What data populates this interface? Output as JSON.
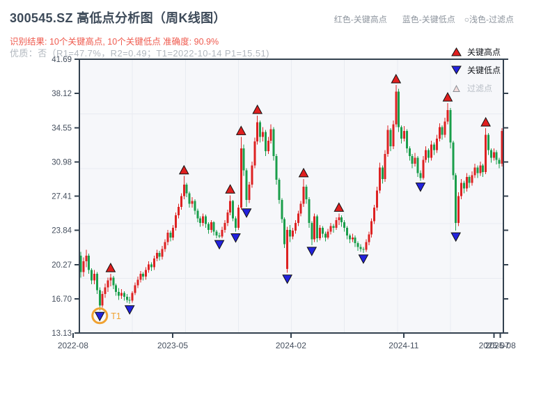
{
  "header": {
    "title": "300545.SZ 高低点分析图（周K线图）",
    "legend_inline": {
      "high": "红色-关键高点",
      "low": "蓝色-关键低点",
      "filtered": "○浅色-过滤点"
    },
    "result_line": "识别结果: 10个关键高点, 10个关键低点  准确度: 90.9%",
    "quality_line": "优质：否（R1=47.7%，R2=0.49；T1=2022-10-14 P1=15.51)"
  },
  "legend_box": {
    "items": [
      {
        "label": "关键高点",
        "marker": "triangle-up",
        "color": "#e01f1f"
      },
      {
        "label": "关键低点",
        "marker": "triangle-down",
        "color": "#2222dd"
      },
      {
        "label": "过滤点",
        "marker": "triangle-up-outline",
        "color": "#f2dbdb"
      }
    ]
  },
  "chart_data": {
    "type": "candlestick",
    "title": "300545.SZ 高低点分析图（周K线图）",
    "frequency": "weekly",
    "ylim": [
      13.13,
      41.69
    ],
    "y_ticks": [
      "41.69",
      "38.12",
      "34.55",
      "30.98",
      "27.41",
      "23.84",
      "20.27",
      "16.70",
      "13.13"
    ],
    "x_ticks": [
      {
        "label": "2022-08",
        "f": -0.015
      },
      {
        "label": "2023-05",
        "f": 0.22
      },
      {
        "label": "2024-02",
        "f": 0.499
      },
      {
        "label": "2024-11",
        "f": 0.765
      },
      {
        "label": "2025-07",
        "f": 0.978
      },
      {
        "label": "2025-08",
        "f": 0.993
      }
    ],
    "grid": {
      "on": true,
      "h_divisions": 5,
      "v_divisions": 8
    },
    "legend_position": "top-right-inside",
    "colors": {
      "up": "#dd2222",
      "down": "#1a9e4b",
      "key_high": "#e01f1f",
      "key_low": "#2222dd",
      "filtered": "#f2dbdb",
      "annotation": "#f0a232",
      "spine": "#33414f",
      "grid": "#e8ebf1",
      "plot_bg": "#f6f7fa",
      "tick_label": "#454f5e"
    },
    "candles_format": [
      "open",
      "high",
      "low",
      "close"
    ],
    "candles": [
      [
        21.2,
        21.6,
        18.9,
        19.5
      ],
      [
        19.5,
        21.0,
        19.0,
        20.6
      ],
      [
        20.6,
        21.8,
        20.0,
        21.2
      ],
      [
        21.2,
        21.4,
        19.3,
        19.7
      ],
      [
        19.7,
        19.9,
        18.2,
        18.6
      ],
      [
        18.6,
        19.7,
        18.2,
        19.3
      ],
      [
        19.3,
        19.5,
        17.2,
        17.6
      ],
      [
        17.6,
        17.9,
        15.51,
        16.0
      ],
      [
        16.0,
        17.5,
        15.8,
        17.2
      ],
      [
        17.2,
        18.3,
        16.8,
        17.9
      ],
      [
        17.9,
        18.9,
        17.4,
        18.6
      ],
      [
        18.6,
        19.3,
        18.0,
        18.9
      ],
      [
        18.9,
        19.1,
        17.7,
        18.1
      ],
      [
        18.1,
        18.3,
        17.0,
        17.4
      ],
      [
        17.4,
        17.8,
        16.6,
        17.0
      ],
      [
        17.0,
        17.7,
        16.7,
        17.3
      ],
      [
        17.3,
        17.5,
        16.5,
        16.9
      ],
      [
        16.9,
        17.2,
        16.3,
        16.6
      ],
      [
        16.6,
        16.9,
        16.2,
        16.5
      ],
      [
        16.5,
        17.5,
        16.3,
        17.3
      ],
      [
        17.3,
        18.4,
        17.1,
        18.1
      ],
      [
        18.1,
        19.0,
        17.8,
        18.7
      ],
      [
        18.7,
        19.6,
        18.4,
        19.3
      ],
      [
        19.3,
        19.5,
        18.6,
        19.0
      ],
      [
        19.0,
        20.0,
        18.7,
        19.7
      ],
      [
        19.7,
        20.6,
        19.4,
        20.3
      ],
      [
        20.3,
        20.5,
        19.6,
        20.0
      ],
      [
        20.0,
        21.2,
        19.7,
        20.9
      ],
      [
        20.9,
        21.8,
        20.6,
        21.5
      ],
      [
        21.5,
        21.7,
        20.7,
        21.1
      ],
      [
        21.1,
        22.2,
        20.8,
        21.9
      ],
      [
        21.9,
        22.9,
        21.6,
        22.6
      ],
      [
        22.6,
        23.9,
        22.3,
        23.6
      ],
      [
        23.6,
        23.8,
        22.7,
        23.1
      ],
      [
        23.1,
        24.4,
        22.8,
        24.1
      ],
      [
        24.1,
        25.7,
        23.8,
        25.4
      ],
      [
        25.4,
        26.6,
        25.1,
        26.3
      ],
      [
        26.3,
        27.7,
        26.0,
        27.4
      ],
      [
        27.4,
        29.5,
        27.1,
        28.6
      ],
      [
        28.6,
        28.8,
        27.3,
        27.7
      ],
      [
        27.7,
        27.9,
        26.2,
        26.6
      ],
      [
        26.6,
        27.3,
        26.2,
        26.9
      ],
      [
        26.9,
        27.1,
        25.5,
        25.9
      ],
      [
        25.9,
        26.1,
        24.7,
        25.1
      ],
      [
        25.1,
        25.3,
        24.2,
        24.6
      ],
      [
        24.6,
        25.6,
        24.3,
        25.3
      ],
      [
        25.3,
        25.5,
        24.1,
        24.5
      ],
      [
        24.5,
        24.7,
        23.5,
        23.9
      ],
      [
        23.9,
        24.9,
        23.6,
        24.7
      ],
      [
        24.7,
        24.8,
        23.3,
        23.7
      ],
      [
        23.7,
        23.9,
        23.0,
        23.3
      ],
      [
        23.3,
        23.6,
        23.0,
        23.2
      ],
      [
        23.2,
        24.2,
        23.0,
        23.9
      ],
      [
        23.9,
        24.9,
        23.6,
        24.6
      ],
      [
        24.6,
        26.0,
        24.3,
        25.7
      ],
      [
        25.7,
        27.5,
        25.4,
        26.9
      ],
      [
        26.9,
        27.0,
        24.8,
        25.1
      ],
      [
        25.1,
        25.3,
        23.7,
        24.1
      ],
      [
        24.1,
        26.5,
        23.9,
        26.2
      ],
      [
        26.2,
        33.6,
        26.0,
        32.4
      ],
      [
        32.4,
        32.8,
        29.5,
        30.1
      ],
      [
        30.1,
        30.3,
        26.3,
        27.0
      ],
      [
        27.0,
        28.9,
        26.7,
        28.6
      ],
      [
        28.6,
        31.0,
        28.3,
        30.6
      ],
      [
        30.6,
        33.5,
        30.3,
        33.1
      ],
      [
        33.1,
        35.8,
        32.8,
        35.1
      ],
      [
        35.1,
        35.3,
        33.0,
        33.6
      ],
      [
        33.6,
        34.6,
        33.1,
        34.1
      ],
      [
        34.1,
        34.3,
        31.6,
        32.1
      ],
      [
        32.1,
        33.6,
        31.8,
        33.2
      ],
      [
        33.2,
        34.9,
        32.9,
        34.4
      ],
      [
        34.4,
        34.6,
        31.1,
        31.6
      ],
      [
        31.6,
        31.8,
        28.6,
        29.1
      ],
      [
        29.1,
        29.3,
        26.6,
        27.0
      ],
      [
        27.0,
        27.2,
        24.6,
        25.0
      ],
      [
        25.0,
        25.2,
        22.0,
        22.4
      ],
      [
        19.8,
        24.2,
        19.4,
        23.9
      ],
      [
        23.9,
        24.4,
        22.6,
        23.2
      ],
      [
        23.2,
        24.1,
        22.9,
        23.8
      ],
      [
        23.8,
        24.9,
        23.5,
        24.6
      ],
      [
        24.6,
        25.9,
        24.3,
        25.6
      ],
      [
        25.6,
        26.9,
        25.3,
        26.6
      ],
      [
        26.6,
        29.2,
        26.3,
        28.4
      ],
      [
        28.4,
        28.6,
        26.6,
        27.1
      ],
      [
        27.1,
        27.3,
        24.1,
        24.6
      ],
      [
        24.6,
        24.8,
        22.3,
        22.9
      ],
      [
        22.9,
        25.6,
        22.6,
        25.3
      ],
      [
        25.3,
        25.5,
        22.6,
        23.0
      ],
      [
        23.0,
        24.4,
        22.8,
        24.1
      ],
      [
        24.1,
        24.3,
        23.1,
        23.5
      ],
      [
        23.5,
        23.7,
        22.7,
        23.1
      ],
      [
        23.1,
        24.0,
        22.9,
        23.7
      ],
      [
        23.7,
        24.6,
        23.4,
        24.3
      ],
      [
        24.3,
        24.5,
        23.6,
        24.1
      ],
      [
        24.1,
        25.2,
        23.9,
        24.9
      ],
      [
        24.9,
        25.6,
        24.4,
        25.2
      ],
      [
        25.2,
        25.4,
        24.2,
        24.7
      ],
      [
        24.7,
        24.9,
        23.7,
        24.1
      ],
      [
        24.1,
        24.3,
        22.9,
        23.3
      ],
      [
        23.3,
        23.5,
        22.5,
        22.9
      ],
      [
        22.9,
        23.5,
        22.6,
        23.1
      ],
      [
        23.1,
        23.3,
        22.1,
        22.5
      ],
      [
        22.5,
        22.7,
        21.7,
        22.1
      ],
      [
        22.1,
        22.4,
        21.6,
        21.9
      ],
      [
        21.9,
        22.1,
        21.5,
        21.8
      ],
      [
        21.8,
        22.9,
        21.6,
        22.6
      ],
      [
        22.6,
        23.7,
        22.3,
        23.4
      ],
      [
        23.4,
        25.1,
        23.1,
        24.8
      ],
      [
        24.8,
        26.5,
        24.5,
        26.2
      ],
      [
        26.2,
        28.4,
        25.9,
        28.0
      ],
      [
        28.0,
        30.9,
        27.7,
        30.4
      ],
      [
        30.4,
        30.6,
        28.7,
        29.2
      ],
      [
        29.2,
        32.2,
        28.9,
        31.8
      ],
      [
        31.8,
        34.8,
        31.5,
        34.3
      ],
      [
        34.3,
        34.5,
        32.1,
        32.6
      ],
      [
        32.6,
        35.3,
        32.3,
        34.9
      ],
      [
        34.9,
        39.0,
        34.6,
        38.3
      ],
      [
        38.3,
        38.6,
        34.1,
        34.6
      ],
      [
        34.6,
        34.8,
        32.9,
        33.4
      ],
      [
        33.4,
        34.7,
        33.1,
        34.2
      ],
      [
        34.2,
        34.4,
        31.9,
        32.4
      ],
      [
        32.4,
        32.6,
        31.1,
        31.6
      ],
      [
        31.6,
        31.8,
        30.3,
        30.8
      ],
      [
        30.8,
        31.9,
        30.5,
        31.4
      ],
      [
        31.4,
        31.6,
        29.4,
        29.8
      ],
      [
        29.8,
        30.1,
        29.0,
        29.3
      ],
      [
        29.3,
        31.6,
        29.1,
        31.2
      ],
      [
        31.2,
        32.6,
        30.9,
        32.2
      ],
      [
        32.2,
        32.4,
        30.9,
        31.4
      ],
      [
        31.4,
        33.2,
        31.1,
        32.8
      ],
      [
        32.8,
        33.0,
        31.7,
        32.2
      ],
      [
        32.2,
        33.8,
        31.9,
        33.4
      ],
      [
        33.4,
        35.0,
        33.1,
        34.6
      ],
      [
        34.6,
        34.8,
        33.3,
        33.8
      ],
      [
        33.8,
        35.6,
        33.5,
        35.2
      ],
      [
        35.2,
        37.1,
        34.9,
        36.4
      ],
      [
        36.4,
        36.6,
        32.4,
        33.0
      ],
      [
        33.0,
        33.2,
        29.1,
        29.6
      ],
      [
        29.6,
        29.8,
        23.8,
        24.6
      ],
      [
        24.6,
        27.8,
        24.3,
        27.4
      ],
      [
        27.4,
        29.2,
        27.1,
        28.8
      ],
      [
        28.8,
        29.0,
        27.7,
        28.2
      ],
      [
        28.2,
        29.8,
        27.9,
        29.4
      ],
      [
        29.4,
        29.6,
        28.3,
        28.8
      ],
      [
        28.8,
        30.0,
        28.5,
        29.6
      ],
      [
        29.6,
        30.8,
        29.3,
        30.4
      ],
      [
        30.4,
        30.6,
        29.3,
        29.8
      ],
      [
        29.8,
        31.0,
        29.5,
        30.6
      ],
      [
        30.6,
        30.8,
        29.4,
        29.9
      ],
      [
        29.9,
        34.5,
        29.7,
        33.8
      ],
      [
        33.8,
        34.0,
        31.7,
        32.2
      ],
      [
        32.2,
        32.4,
        30.9,
        31.4
      ],
      [
        31.4,
        32.4,
        31.1,
        32.0
      ],
      [
        32.0,
        32.2,
        30.7,
        31.2
      ],
      [
        31.2,
        31.4,
        30.3,
        30.8
      ],
      [
        30.8,
        34.5,
        30.5,
        34.2
      ]
    ],
    "key_highs": [
      {
        "week": 11,
        "price": 19.3
      },
      {
        "week": 38,
        "price": 29.5
      },
      {
        "week": 55,
        "price": 27.5
      },
      {
        "week": 59,
        "price": 33.6
      },
      {
        "week": 65,
        "price": 35.8
      },
      {
        "week": 82,
        "price": 29.2
      },
      {
        "week": 95,
        "price": 25.6
      },
      {
        "week": 116,
        "price": 39.0
      },
      {
        "week": 135,
        "price": 37.1
      },
      {
        "week": 149,
        "price": 34.5
      }
    ],
    "key_lows": [
      {
        "week": 7,
        "price": 15.51
      },
      {
        "week": 18,
        "price": 16.2
      },
      {
        "week": 51,
        "price": 23.0
      },
      {
        "week": 57,
        "price": 23.7
      },
      {
        "week": 61,
        "price": 26.3
      },
      {
        "week": 76,
        "price": 19.4
      },
      {
        "week": 85,
        "price": 22.3
      },
      {
        "week": 104,
        "price": 21.5
      },
      {
        "week": 125,
        "price": 29.0
      },
      {
        "week": 138,
        "price": 23.8
      }
    ],
    "annotation": {
      "label": "T1",
      "week": 7,
      "price": 15.51,
      "date": "2022-10-14"
    }
  }
}
